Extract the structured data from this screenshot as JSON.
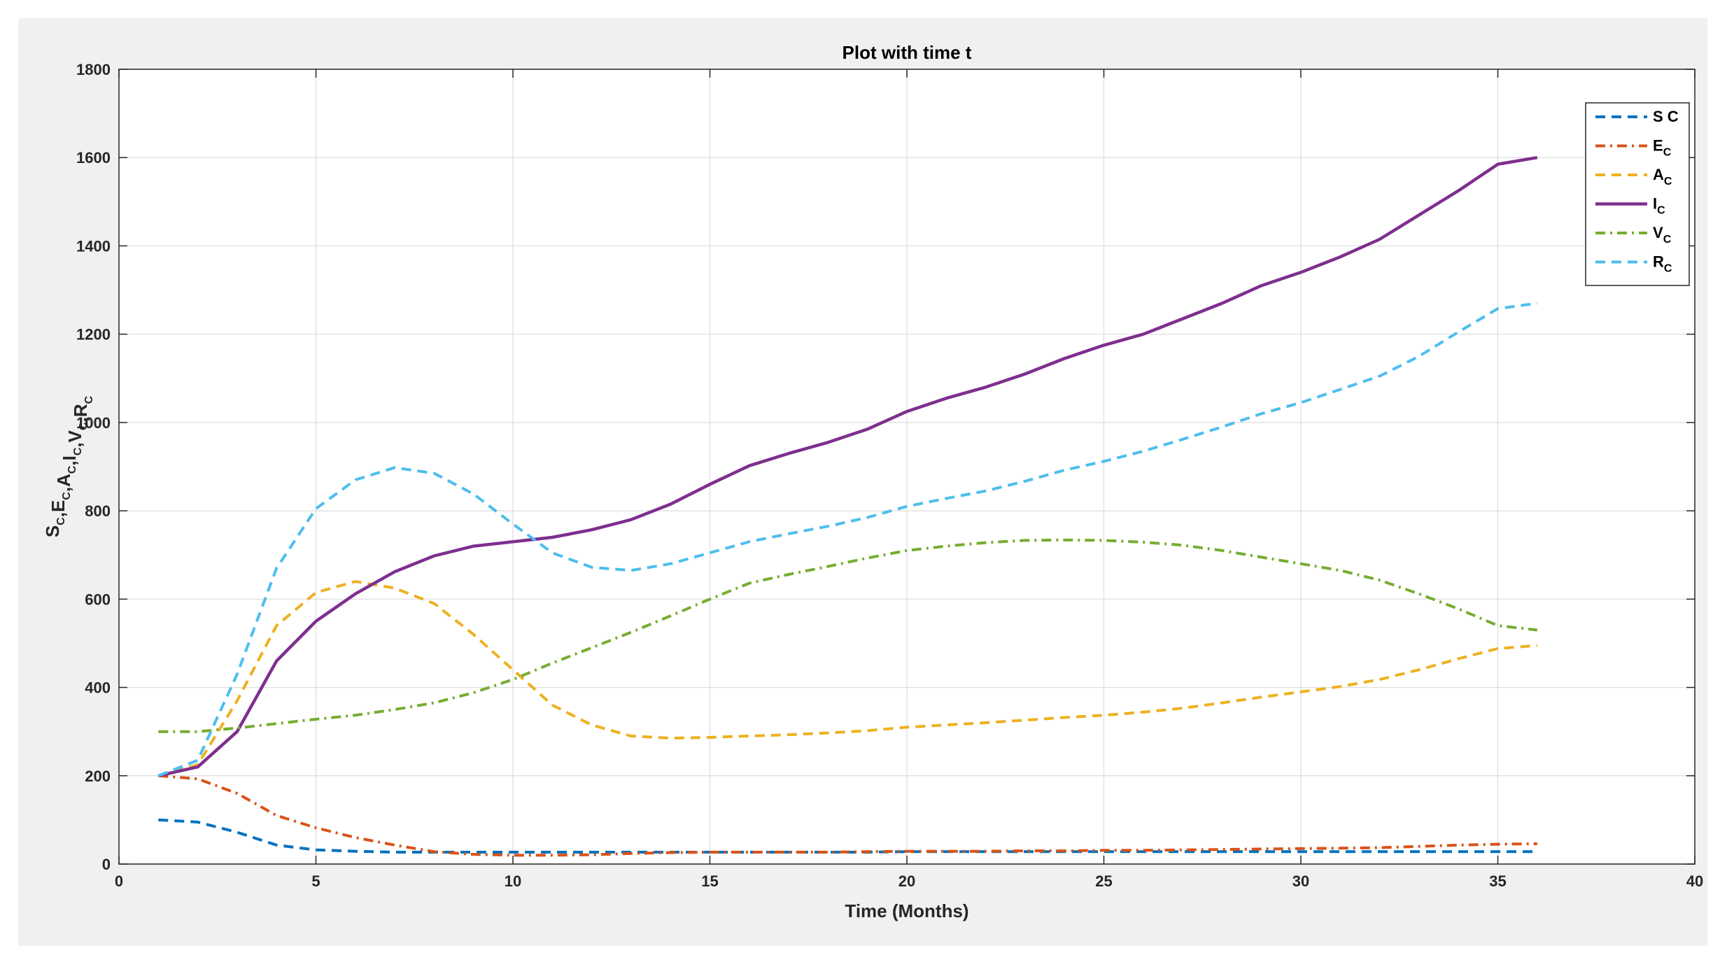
{
  "chart_data": {
    "type": "line",
    "title": "Plot with time t",
    "xlabel": "Time (Months)",
    "ylabel_parts": [
      {
        "main": "S",
        "sub": "C"
      },
      {
        "main": ",E",
        "sub": "C"
      },
      {
        "main": ",A",
        "sub": "C"
      },
      {
        "main": ",I",
        "sub": "C"
      },
      {
        "main": ",V",
        "sub": "C"
      },
      {
        "main": ",R",
        "sub": "C"
      }
    ],
    "xlim": [
      0,
      40
    ],
    "ylim": [
      0,
      1800
    ],
    "xticks": [
      0,
      5,
      10,
      15,
      20,
      25,
      30,
      35,
      40
    ],
    "yticks": [
      0,
      200,
      400,
      600,
      800,
      1000,
      1200,
      1400,
      1600,
      1800
    ],
    "grid": true,
    "legend_position": "top-right",
    "x": [
      1,
      2,
      3,
      4,
      5,
      6,
      7,
      8,
      9,
      10,
      11,
      12,
      13,
      14,
      15,
      16,
      17,
      18,
      19,
      20,
      21,
      22,
      23,
      24,
      25,
      26,
      27,
      28,
      29,
      30,
      31,
      32,
      33,
      34,
      35,
      36
    ],
    "series": [
      {
        "name": "S C",
        "name_main": "S C",
        "name_sub": "",
        "color": "#0072BD",
        "dash": "dashed",
        "values": [
          100,
          95,
          72,
          43,
          32,
          29,
          27,
          27,
          27,
          27,
          27,
          27,
          27,
          27,
          27,
          27,
          27,
          27,
          27,
          28,
          28,
          28,
          28,
          28,
          28,
          28,
          28,
          28,
          28,
          28,
          28,
          28,
          28,
          28,
          28,
          28
        ]
      },
      {
        "name": "EC",
        "name_main": "E",
        "name_sub": "C",
        "color": "#D95319",
        "dash": "dashdot",
        "values": [
          200,
          193,
          160,
          110,
          82,
          60,
          43,
          28,
          22,
          20,
          20,
          21,
          24,
          26,
          27,
          27,
          27,
          27,
          28,
          29,
          29,
          29,
          30,
          30,
          31,
          31,
          32,
          33,
          34,
          35,
          36,
          37,
          40,
          43,
          45,
          46
        ]
      },
      {
        "name": "AC",
        "name_main": "A",
        "name_sub": "C",
        "color": "#EDB120",
        "dash": "dashed",
        "values": [
          200,
          225,
          370,
          540,
          615,
          640,
          625,
          590,
          520,
          440,
          360,
          315,
          290,
          285,
          287,
          290,
          293,
          297,
          302,
          310,
          315,
          320,
          326,
          332,
          337,
          344,
          353,
          365,
          378,
          390,
          402,
          418,
          440,
          465,
          488,
          495
        ]
      },
      {
        "name": "IC",
        "name_main": "I",
        "name_sub": "C",
        "color": "#7E2F8E",
        "dash": "solid",
        "values": [
          200,
          220,
          300,
          460,
          550,
          612,
          662,
          698,
          720,
          730,
          740,
          757,
          780,
          815,
          860,
          902,
          930,
          955,
          985,
          1025,
          1055,
          1080,
          1110,
          1145,
          1175,
          1200,
          1235,
          1270,
          1310,
          1340,
          1375,
          1415,
          1470,
          1525,
          1585,
          1600
        ]
      },
      {
        "name": "VC",
        "name_main": "V",
        "name_sub": "C",
        "color": "#77AC30",
        "dash": "dashdot",
        "values": [
          300,
          300,
          308,
          318,
          328,
          337,
          350,
          365,
          388,
          418,
          455,
          490,
          525,
          562,
          600,
          636,
          656,
          674,
          693,
          710,
          720,
          728,
          733,
          734,
          733,
          729,
          722,
          710,
          695,
          680,
          665,
          643,
          612,
          578,
          540,
          530
        ]
      },
      {
        "name": "RC",
        "name_main": "R",
        "name_sub": "C",
        "color": "#4DBEEE",
        "dash": "dashed",
        "values": [
          200,
          235,
          430,
          670,
          805,
          870,
          898,
          885,
          838,
          770,
          705,
          672,
          665,
          680,
          705,
          730,
          748,
          765,
          785,
          810,
          828,
          845,
          867,
          892,
          912,
          935,
          962,
          990,
          1020,
          1045,
          1075,
          1105,
          1150,
          1205,
          1258,
          1270
        ]
      }
    ]
  }
}
